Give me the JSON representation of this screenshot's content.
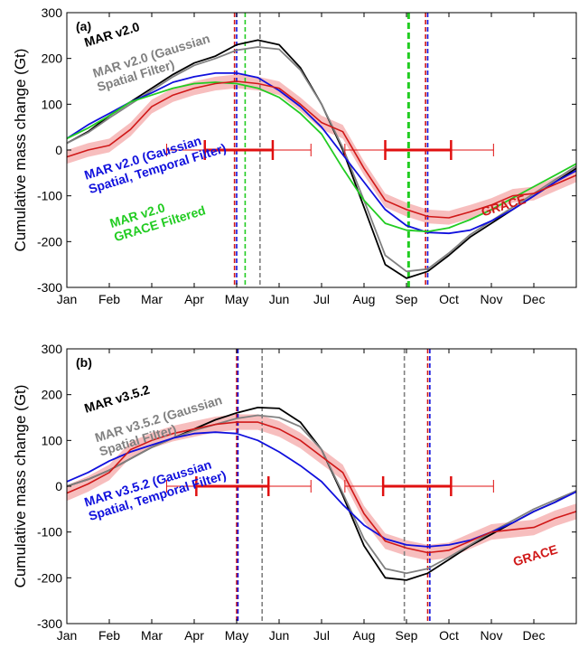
{
  "colors": {
    "black": "#000000",
    "gray": "#808080",
    "blue": "#1010dd",
    "green": "#22cc22",
    "red": "#d01818",
    "band": "#f4a8a8",
    "error_bar": "#e01010"
  },
  "chart_data": [
    {
      "type": "line",
      "panel_label": "(a)",
      "ylabel": "Cumulative mass change (Gt)",
      "xlabel": "",
      "xlim": [
        0,
        12
      ],
      "ylim": [
        -300,
        300
      ],
      "yticks": [
        -300,
        -200,
        -100,
        0,
        100,
        200,
        300
      ],
      "months": [
        "Jan",
        "Feb",
        "Mar",
        "Apr",
        "May",
        "Jun",
        "Jul",
        "Aug",
        "Sep",
        "Oct",
        "Nov",
        "Dec"
      ],
      "grid": false,
      "x": [
        0,
        0.5,
        1,
        1.5,
        2,
        2.5,
        3,
        3.5,
        4,
        4.5,
        5,
        5.5,
        6,
        6.5,
        7,
        7.5,
        8,
        8.5,
        9,
        9.5,
        10,
        10.5,
        11,
        11.5,
        12
      ],
      "series": [
        {
          "name": "MAR v2.0",
          "color": "black",
          "values": [
            15,
            40,
            75,
            105,
            135,
            165,
            190,
            205,
            230,
            240,
            230,
            180,
            100,
            0,
            -125,
            -250,
            -280,
            -265,
            -230,
            -190,
            -160,
            -130,
            -100,
            -70,
            -40
          ]
        },
        {
          "name": "MAR v2.0 (Gaussian Spatial Filter)",
          "color": "gray",
          "values": [
            15,
            38,
            70,
            100,
            130,
            160,
            185,
            200,
            218,
            225,
            220,
            175,
            100,
            5,
            -110,
            -230,
            -265,
            -260,
            -225,
            -185,
            -155,
            -125,
            -95,
            -65,
            -35
          ]
        },
        {
          "name": "MAR v2.0 (Gaussian Spatial, Temporal Filter)",
          "color": "blue",
          "values": [
            25,
            55,
            80,
            105,
            125,
            148,
            160,
            168,
            168,
            158,
            130,
            95,
            50,
            -10,
            -70,
            -130,
            -165,
            -180,
            -182,
            -175,
            -155,
            -130,
            -100,
            -70,
            -45
          ]
        },
        {
          "name": "MAR v2.0 GRACE Filtered",
          "color": "green",
          "values": [
            25,
            48,
            75,
            105,
            120,
            135,
            145,
            148,
            145,
            135,
            115,
            80,
            35,
            -40,
            -110,
            -160,
            -175,
            -178,
            -170,
            -152,
            -130,
            -105,
            -80,
            -55,
            -30
          ]
        },
        {
          "name": "GRACE",
          "color": "red",
          "values": [
            -15,
            0,
            10,
            45,
            95,
            120,
            135,
            145,
            150,
            145,
            135,
            100,
            60,
            40,
            -40,
            -110,
            -130,
            -145,
            -148,
            -135,
            -120,
            -100,
            -95,
            -75,
            -55
          ]
        }
      ],
      "band_halfwidth": 15,
      "vlines": [
        {
          "x": 3.95,
          "color": "red"
        },
        {
          "x": 4.0,
          "color": "blue"
        },
        {
          "x": 4.2,
          "color": "green"
        },
        {
          "x": 4.55,
          "color": "gray"
        },
        {
          "x": 8.05,
          "color": "green",
          "bold": true
        },
        {
          "x": 8.45,
          "color": "red"
        },
        {
          "x": 8.5,
          "color": "blue"
        }
      ],
      "error_bars": [
        {
          "x": 4.05,
          "y": 0,
          "inner": [
            3.25,
            4.85
          ],
          "outer": [
            2.35,
            5.75
          ]
        },
        {
          "x": 8.3,
          "y": 0,
          "inner": [
            7.5,
            9.05
          ],
          "outer": [
            6.55,
            10.05
          ]
        }
      ],
      "annotations": [
        {
          "id": "a-mar",
          "lines": [
            "MAR v2.0"
          ],
          "color": "black",
          "x": 0.45,
          "y": 225,
          "rotate": -17
        },
        {
          "id": "a-gauss",
          "lines": [
            "MAR v2.0 (Gaussian",
            "Spatial Filter)"
          ],
          "color": "gray",
          "x": 0.65,
          "y": 158,
          "rotate": -17
        },
        {
          "id": "a-temp",
          "lines": [
            "MAR v2.0 (Gaussian",
            "Spatial, Temporal Filter)"
          ],
          "color": "blue",
          "x": 0.45,
          "y": -65,
          "rotate": -17
        },
        {
          "id": "a-green",
          "lines": [
            "MAR v2.0",
            "GRACE Filtered"
          ],
          "color": "green",
          "x": 1.05,
          "y": -170,
          "rotate": -17
        },
        {
          "id": "a-grace",
          "lines": [
            "GRACE"
          ],
          "color": "red",
          "x": 9.8,
          "y": -145,
          "rotate": -17
        }
      ]
    },
    {
      "type": "line",
      "panel_label": "(b)",
      "ylabel": "Cumulative mass change (Gt)",
      "xlabel": "",
      "xlim": [
        0,
        12
      ],
      "ylim": [
        -300,
        300
      ],
      "yticks": [
        -300,
        -200,
        -100,
        0,
        100,
        200,
        300
      ],
      "months": [
        "Jan",
        "Feb",
        "Mar",
        "Apr",
        "May",
        "Jun",
        "Jul",
        "Aug",
        "Sep",
        "Oct",
        "Nov",
        "Dec"
      ],
      "grid": false,
      "x": [
        0,
        0.5,
        1,
        1.5,
        2,
        2.5,
        3,
        3.5,
        4,
        4.5,
        5,
        5.5,
        6,
        6.5,
        7,
        7.5,
        8,
        8.5,
        9,
        9.5,
        10,
        10.5,
        11,
        11.5,
        12
      ],
      "series": [
        {
          "name": "MAR v3.5.2",
          "color": "black",
          "values": [
            0,
            15,
            35,
            60,
            85,
            105,
            125,
            145,
            160,
            172,
            170,
            140,
            80,
            -20,
            -130,
            -200,
            -205,
            -190,
            -160,
            -130,
            -105,
            -80,
            -55,
            -35,
            -10
          ]
        },
        {
          "name": "MAR v3.5.2 (Gaussian Spatial Filter)",
          "color": "gray",
          "values": [
            0,
            15,
            35,
            60,
            85,
            105,
            122,
            135,
            148,
            155,
            150,
            130,
            80,
            -15,
            -115,
            -180,
            -190,
            -180,
            -155,
            -128,
            -100,
            -75,
            -50,
            -30,
            -10
          ]
        },
        {
          "name": "MAR v3.5.2 (Gaussian Spatial, Temporal Filter)",
          "color": "blue",
          "values": [
            10,
            30,
            55,
            75,
            90,
            105,
            115,
            118,
            115,
            100,
            75,
            45,
            10,
            -40,
            -85,
            -115,
            -128,
            -132,
            -128,
            -118,
            -100,
            -80,
            -55,
            -35,
            -12
          ]
        },
        {
          "name": "GRACE",
          "color": "red",
          "values": [
            -15,
            5,
            30,
            80,
            100,
            115,
            125,
            135,
            140,
            140,
            125,
            100,
            65,
            30,
            -60,
            -120,
            -135,
            -145,
            -140,
            -120,
            -100,
            -95,
            -90,
            -70,
            -55
          ]
        }
      ],
      "band_halfwidth": 17,
      "vlines": [
        {
          "x": 4.0,
          "color": "red"
        },
        {
          "x": 4.03,
          "color": "blue"
        },
        {
          "x": 4.6,
          "color": "gray"
        },
        {
          "x": 7.95,
          "color": "gray"
        },
        {
          "x": 8.5,
          "color": "red"
        },
        {
          "x": 8.55,
          "color": "blue"
        }
      ],
      "error_bars": [
        {
          "x": 4.05,
          "y": 0,
          "inner": [
            3.05,
            4.75
          ],
          "outer": [
            2.35,
            5.75
          ]
        },
        {
          "x": 8.25,
          "y": 0,
          "inner": [
            7.45,
            9.05
          ],
          "outer": [
            6.55,
            10.05
          ]
        }
      ],
      "annotations": [
        {
          "id": "b-mar",
          "lines": [
            "MAR v3.5.2"
          ],
          "color": "black",
          "x": 0.45,
          "y": 160,
          "rotate": -17
        },
        {
          "id": "b-gauss",
          "lines": [
            "MAR v3.5.2 (Gaussian",
            "Spatial Filter)"
          ],
          "color": "gray",
          "x": 0.7,
          "y": 96,
          "rotate": -17
        },
        {
          "id": "b-temp",
          "lines": [
            "MAR v3.5.2 (Gaussian",
            "Spatial, Temporal Filter)"
          ],
          "color": "blue",
          "x": 0.45,
          "y": -45,
          "rotate": -17
        },
        {
          "id": "b-grace",
          "lines": [
            "GRACE"
          ],
          "color": "red",
          "x": 10.55,
          "y": -175,
          "rotate": -17
        }
      ]
    }
  ]
}
